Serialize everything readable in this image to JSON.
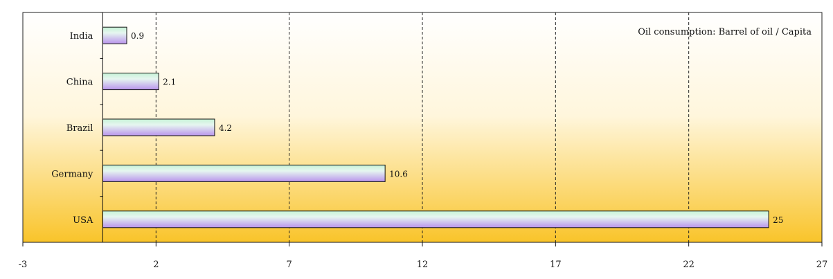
{
  "chart_data": {
    "type": "bar",
    "orientation": "horizontal",
    "title": "Oil consumption: Barrel of oil / Capita",
    "categories": [
      "India",
      "China",
      "Brazil",
      "Germany",
      "USA"
    ],
    "values": [
      0.9,
      2.1,
      4.2,
      10.6,
      25
    ],
    "data_labels": [
      "0.9",
      "2.1",
      "4.2",
      "10.6",
      "25"
    ],
    "xlim": [
      -3,
      27
    ],
    "x_ticks": [
      -3,
      2,
      7,
      12,
      17,
      22,
      27
    ],
    "x_tick_labels": [
      "-3",
      "2",
      "7",
      "12",
      "17",
      "22",
      "27"
    ],
    "value_axis_crosses_at": 0,
    "grid": "dashed vertical gridlines",
    "legend": "none",
    "title_position": "top-right"
  },
  "colors": {
    "plot_gradient_top": "#ffffff",
    "plot_gradient_bottom": "#f9c42a",
    "bar_top": "#c6f2d6",
    "bar_bottom": "#b994ec",
    "bar_border": "#111111",
    "grid": "#222222"
  }
}
